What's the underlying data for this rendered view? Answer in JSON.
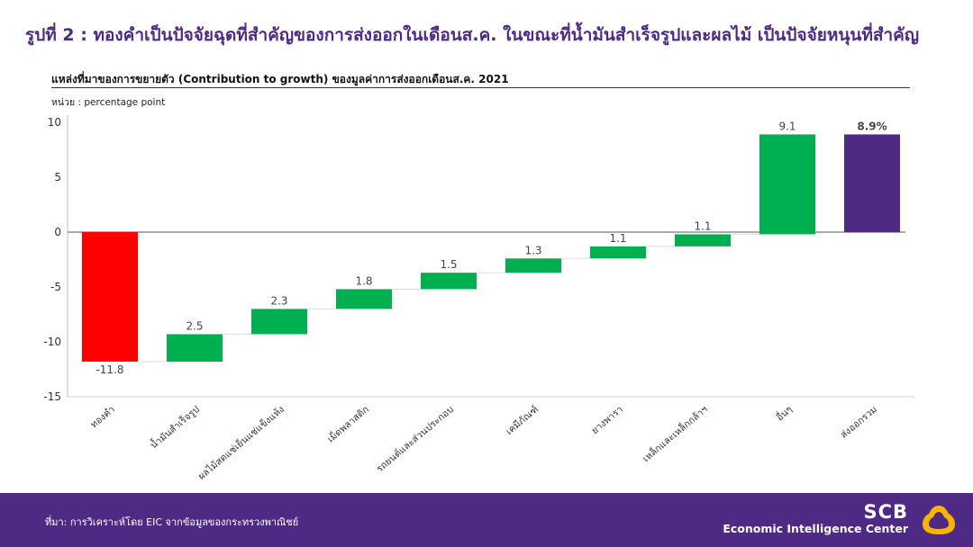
{
  "figure_title": "รูปที่ 2 : ทองคำเป็นปัจจัยฉุดที่สำคัญของการส่งออกในเดือนส.ค. ในขณะที่น้ำมันสำเร็จรูปและผลไม้ เป็นปัจจัยหนุนที่สำคัญ",
  "footer": {
    "source": "ที่มา: การวิเคราะห์โดย EIC จากข้อมูลของกระทรวงพาณิชย์",
    "brand_name": "SCB",
    "brand_sub": "Economic Intelligence Center"
  },
  "colors": {
    "negative": "#ff0000",
    "positive": "#00b050",
    "total": "#4e2a84",
    "brand": "#4e2a84",
    "logo": "#f7b500"
  },
  "chart_data": {
    "type": "bar",
    "subtype": "waterfall",
    "title": "แหล่งที่มาของการขยายตัว (Contribution to growth) ของมูลค่าการส่งออกเดือนส.ค. 2021",
    "unit": "หน่วย : percentage  point",
    "ylim": [
      -15,
      10
    ],
    "yticks": [
      10,
      5,
      0,
      -5,
      -10,
      -15
    ],
    "grid": false,
    "categories": [
      "ทองคำ",
      "น้ำมันสำเร็จรูป",
      "ผลไม้สดแช่เย็นแช่แข็งแห้ง",
      "เม็ดพลาสติก",
      "รถยนต์และส่วนประกอบ",
      "เคมีภัณฑ์",
      "ยางพารา",
      "เหล็กและเหล็กกล้าฯ",
      "อื่นๆ",
      "ส่งออกรวม"
    ],
    "values": [
      -11.8,
      2.5,
      2.3,
      1.8,
      1.5,
      1.3,
      1.1,
      1.1,
      9.1,
      8.9
    ],
    "labels": [
      "-11.8",
      "2.5",
      "2.3",
      "1.8",
      "1.5",
      "1.3",
      "1.1",
      "1.1",
      "9.1",
      "8.9%"
    ],
    "kinds": [
      "negative",
      "positive",
      "positive",
      "positive",
      "positive",
      "positive",
      "positive",
      "positive",
      "positive",
      "total"
    ]
  }
}
